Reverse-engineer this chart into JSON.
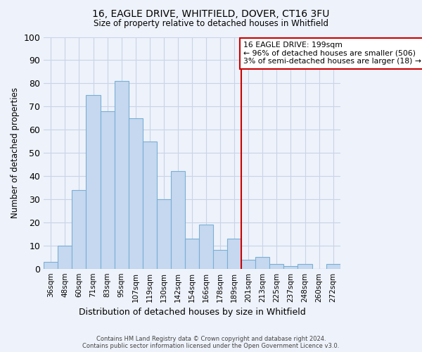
{
  "title": "16, EAGLE DRIVE, WHITFIELD, DOVER, CT16 3FU",
  "subtitle": "Size of property relative to detached houses in Whitfield",
  "xlabel": "Distribution of detached houses by size in Whitfield",
  "ylabel": "Number of detached properties",
  "footnote1": "Contains HM Land Registry data © Crown copyright and database right 2024.",
  "footnote2": "Contains public sector information licensed under the Open Government Licence v3.0.",
  "categories": [
    "36sqm",
    "48sqm",
    "60sqm",
    "71sqm",
    "83sqm",
    "95sqm",
    "107sqm",
    "119sqm",
    "130sqm",
    "142sqm",
    "154sqm",
    "166sqm",
    "178sqm",
    "189sqm",
    "201sqm",
    "213sqm",
    "225sqm",
    "237sqm",
    "248sqm",
    "260sqm",
    "272sqm"
  ],
  "values": [
    3,
    10,
    34,
    75,
    68,
    81,
    65,
    55,
    30,
    42,
    13,
    19,
    8,
    13,
    4,
    5,
    2,
    1,
    2,
    0,
    2
  ],
  "bar_color": "#c5d8f0",
  "bar_edge_color": "#7aafd4",
  "grid_color": "#c8d4e8",
  "bg_color": "#eef2fa",
  "vline_x_index": 13.5,
  "vline_color": "#cc0000",
  "ann_line1": "16 EAGLE DRIVE: 199sqm",
  "ann_line2": "← 96% of detached houses are smaller (506)",
  "ann_line3": "3% of semi-detached houses are larger (18) →",
  "annotation_box_color": "#cc0000",
  "ylim": [
    0,
    100
  ],
  "yticks": [
    0,
    10,
    20,
    30,
    40,
    50,
    60,
    70,
    80,
    90,
    100
  ]
}
